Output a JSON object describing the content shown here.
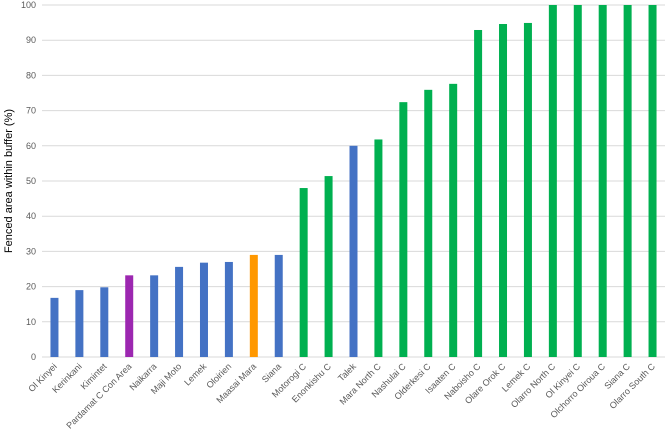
{
  "chart_data": {
    "type": "bar",
    "title": "",
    "xlabel": "",
    "ylabel": "Fenced area within buffer (%)",
    "ylim": [
      0,
      100
    ],
    "yticks": [
      0,
      10,
      20,
      30,
      40,
      50,
      60,
      70,
      80,
      90,
      100
    ],
    "grid": true,
    "legend": "none",
    "colors": {
      "blue": "#4472c4",
      "purple": "#9c27b0",
      "orange": "#ff9800",
      "green": "#00b050"
    },
    "categories": [
      "Ol Kinyei",
      "Kerinkani",
      "Kimintet",
      "Pardamat C Con Area",
      "Naikarra",
      "Maji Moto",
      "Lemek",
      "Oloirien",
      "Maasai Mara",
      "Siana",
      "Motorogi C",
      "Enonkishu C",
      "Talek",
      "Mara North C",
      "Nashulai C",
      "Olderkesi C",
      "Isaaten C",
      "Naboisho C",
      "Olare Orok C",
      "Lemek C",
      "Olarro North C",
      "Ol Kinyei C",
      "Olchorro Oiroua C",
      "Siana C",
      "Olarro South C"
    ],
    "values": [
      16.8,
      19.0,
      19.8,
      23.2,
      23.2,
      25.6,
      26.8,
      27.0,
      29.0,
      29.0,
      48.0,
      51.4,
      60.0,
      61.8,
      72.4,
      75.9,
      77.6,
      92.9,
      94.6,
      94.9,
      100,
      100,
      100,
      100,
      100
    ],
    "bar_colors": [
      "#4472c4",
      "#4472c4",
      "#4472c4",
      "#9c27b0",
      "#4472c4",
      "#4472c4",
      "#4472c4",
      "#4472c4",
      "#ff9800",
      "#4472c4",
      "#00b050",
      "#00b050",
      "#4472c4",
      "#00b050",
      "#00b050",
      "#00b050",
      "#00b050",
      "#00b050",
      "#00b050",
      "#00b050",
      "#00b050",
      "#00b050",
      "#00b050",
      "#00b050",
      "#00b050"
    ]
  }
}
